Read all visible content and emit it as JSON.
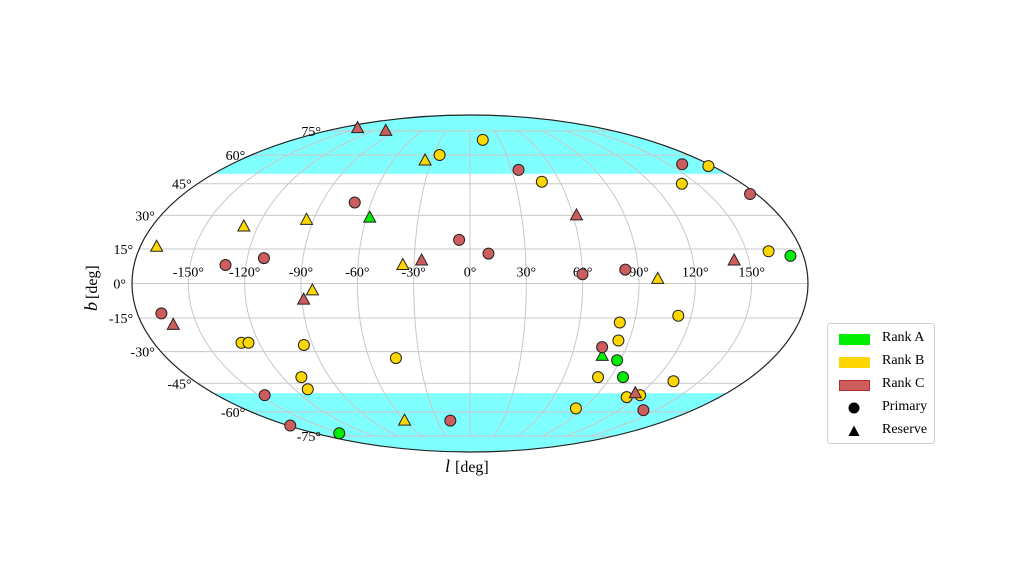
{
  "chart_data": {
    "type": "scatter",
    "projection": "mollweide",
    "title": "",
    "xlabel_italic": "l",
    "xlabel_unit": "[deg]",
    "ylabel_italic": "b",
    "ylabel_unit": "[deg]",
    "xlim": [
      -180,
      180
    ],
    "ylim": [
      -90,
      90
    ],
    "grid": true,
    "x_ticks": [
      -150,
      -120,
      -90,
      -60,
      -30,
      0,
      30,
      60,
      90,
      120,
      150
    ],
    "x_tick_labels": [
      "-150°",
      "-120°",
      "-90°",
      "-60°",
      "-30°",
      "0°",
      "30°",
      "60°",
      "90°",
      "120°",
      "150°"
    ],
    "y_ticks": [
      -75,
      -60,
      -45,
      -30,
      -15,
      0,
      15,
      30,
      45,
      60,
      75
    ],
    "y_tick_labels": [
      "-75°",
      "-60°",
      "-45°",
      "-30°",
      "-15°",
      "0°",
      "15°",
      "30°",
      "45°",
      "60°",
      "75°"
    ],
    "shaded_bands": [
      {
        "b_min": 50,
        "b_max": 90,
        "color": "#80ffff"
      },
      {
        "b_min": -90,
        "b_max": -50,
        "color": "#80ffff"
      }
    ],
    "legend": {
      "position": "right",
      "entries": [
        {
          "label": "Rank A",
          "kind": "swatch",
          "color": "#00ee00"
        },
        {
          "label": "Rank B",
          "kind": "swatch",
          "color": "#ffd700"
        },
        {
          "label": "Rank C",
          "kind": "swatch",
          "color": "#cd5c5c"
        },
        {
          "label": "Primary",
          "kind": "marker",
          "marker": "circle"
        },
        {
          "label": "Reserve",
          "kind": "marker",
          "marker": "triangle"
        }
      ]
    },
    "rank_colors": {
      "A": "#00ee00",
      "B": "#ffd700",
      "C": "#cd5c5c"
    },
    "series": [
      {
        "name": "Rank A Primary",
        "rank": "A",
        "marker": "circle",
        "points": [
          [
            173,
            12
          ],
          [
            88,
            -34
          ],
          [
            98,
            -42
          ],
          [
            -152,
            -73
          ]
        ]
      },
      {
        "name": "Rank A Reserve",
        "rank": "A",
        "marker": "triangle",
        "points": [
          [
            -58,
            29
          ],
          [
            78,
            -32
          ]
        ]
      },
      {
        "name": "Rank B Primary",
        "rank": "B",
        "marker": "circle",
        "points": [
          [
            13,
            69
          ],
          [
            -25,
            60
          ],
          [
            48,
            46
          ],
          [
            177,
            54
          ],
          [
            140,
            45
          ],
          [
            162,
            14
          ],
          [
            -130,
            -26
          ],
          [
            -126,
            -26
          ],
          [
            -95,
            -27
          ],
          [
            -44,
            -33
          ],
          [
            -108,
            -42
          ],
          [
            -111,
            -48
          ],
          [
            113,
            -14
          ],
          [
            82,
            -17
          ],
          [
            84,
            -25
          ],
          [
            82,
            -42
          ],
          [
            133,
            -44
          ],
          [
            121,
            -51
          ],
          [
            113,
            -52
          ],
          [
            84,
            -58
          ]
        ]
      },
      {
        "name": "Rank B Reserve",
        "rank": "B",
        "marker": "triangle",
        "points": [
          [
            -35,
            57
          ],
          [
            -94,
            28
          ],
          [
            -128,
            25
          ],
          [
            -171,
            16
          ],
          [
            -36,
            8
          ],
          [
            100,
            2
          ],
          [
            -84,
            -3
          ],
          [
            -60,
            -65
          ]
        ]
      },
      {
        "name": "Rank C Primary",
        "rank": "C",
        "marker": "circle",
        "points": [
          [
            35,
            52
          ],
          [
            160,
            55
          ],
          [
            176,
            40
          ],
          [
            -70,
            36
          ],
          [
            -6,
            19
          ],
          [
            10,
            13
          ],
          [
            -131,
            8
          ],
          [
            -111,
            11
          ],
          [
            60,
            4
          ],
          [
            83,
            6
          ],
          [
            -167,
            -13
          ],
          [
            -146,
            -51
          ],
          [
            -18,
            -65
          ],
          [
            -178,
            -68
          ],
          [
            76,
            -28
          ],
          [
            140,
            -59
          ]
        ]
      },
      {
        "name": "Rank C Reserve",
        "rank": "C",
        "marker": "triangle",
        "points": [
          [
            -155,
            77
          ],
          [
            -106,
            75
          ],
          [
            62,
            30
          ],
          [
            -26,
            10
          ],
          [
            142,
            10
          ],
          [
            -89,
            -7
          ],
          [
            -163,
            -18
          ],
          [
            116,
            -50
          ]
        ]
      }
    ]
  }
}
